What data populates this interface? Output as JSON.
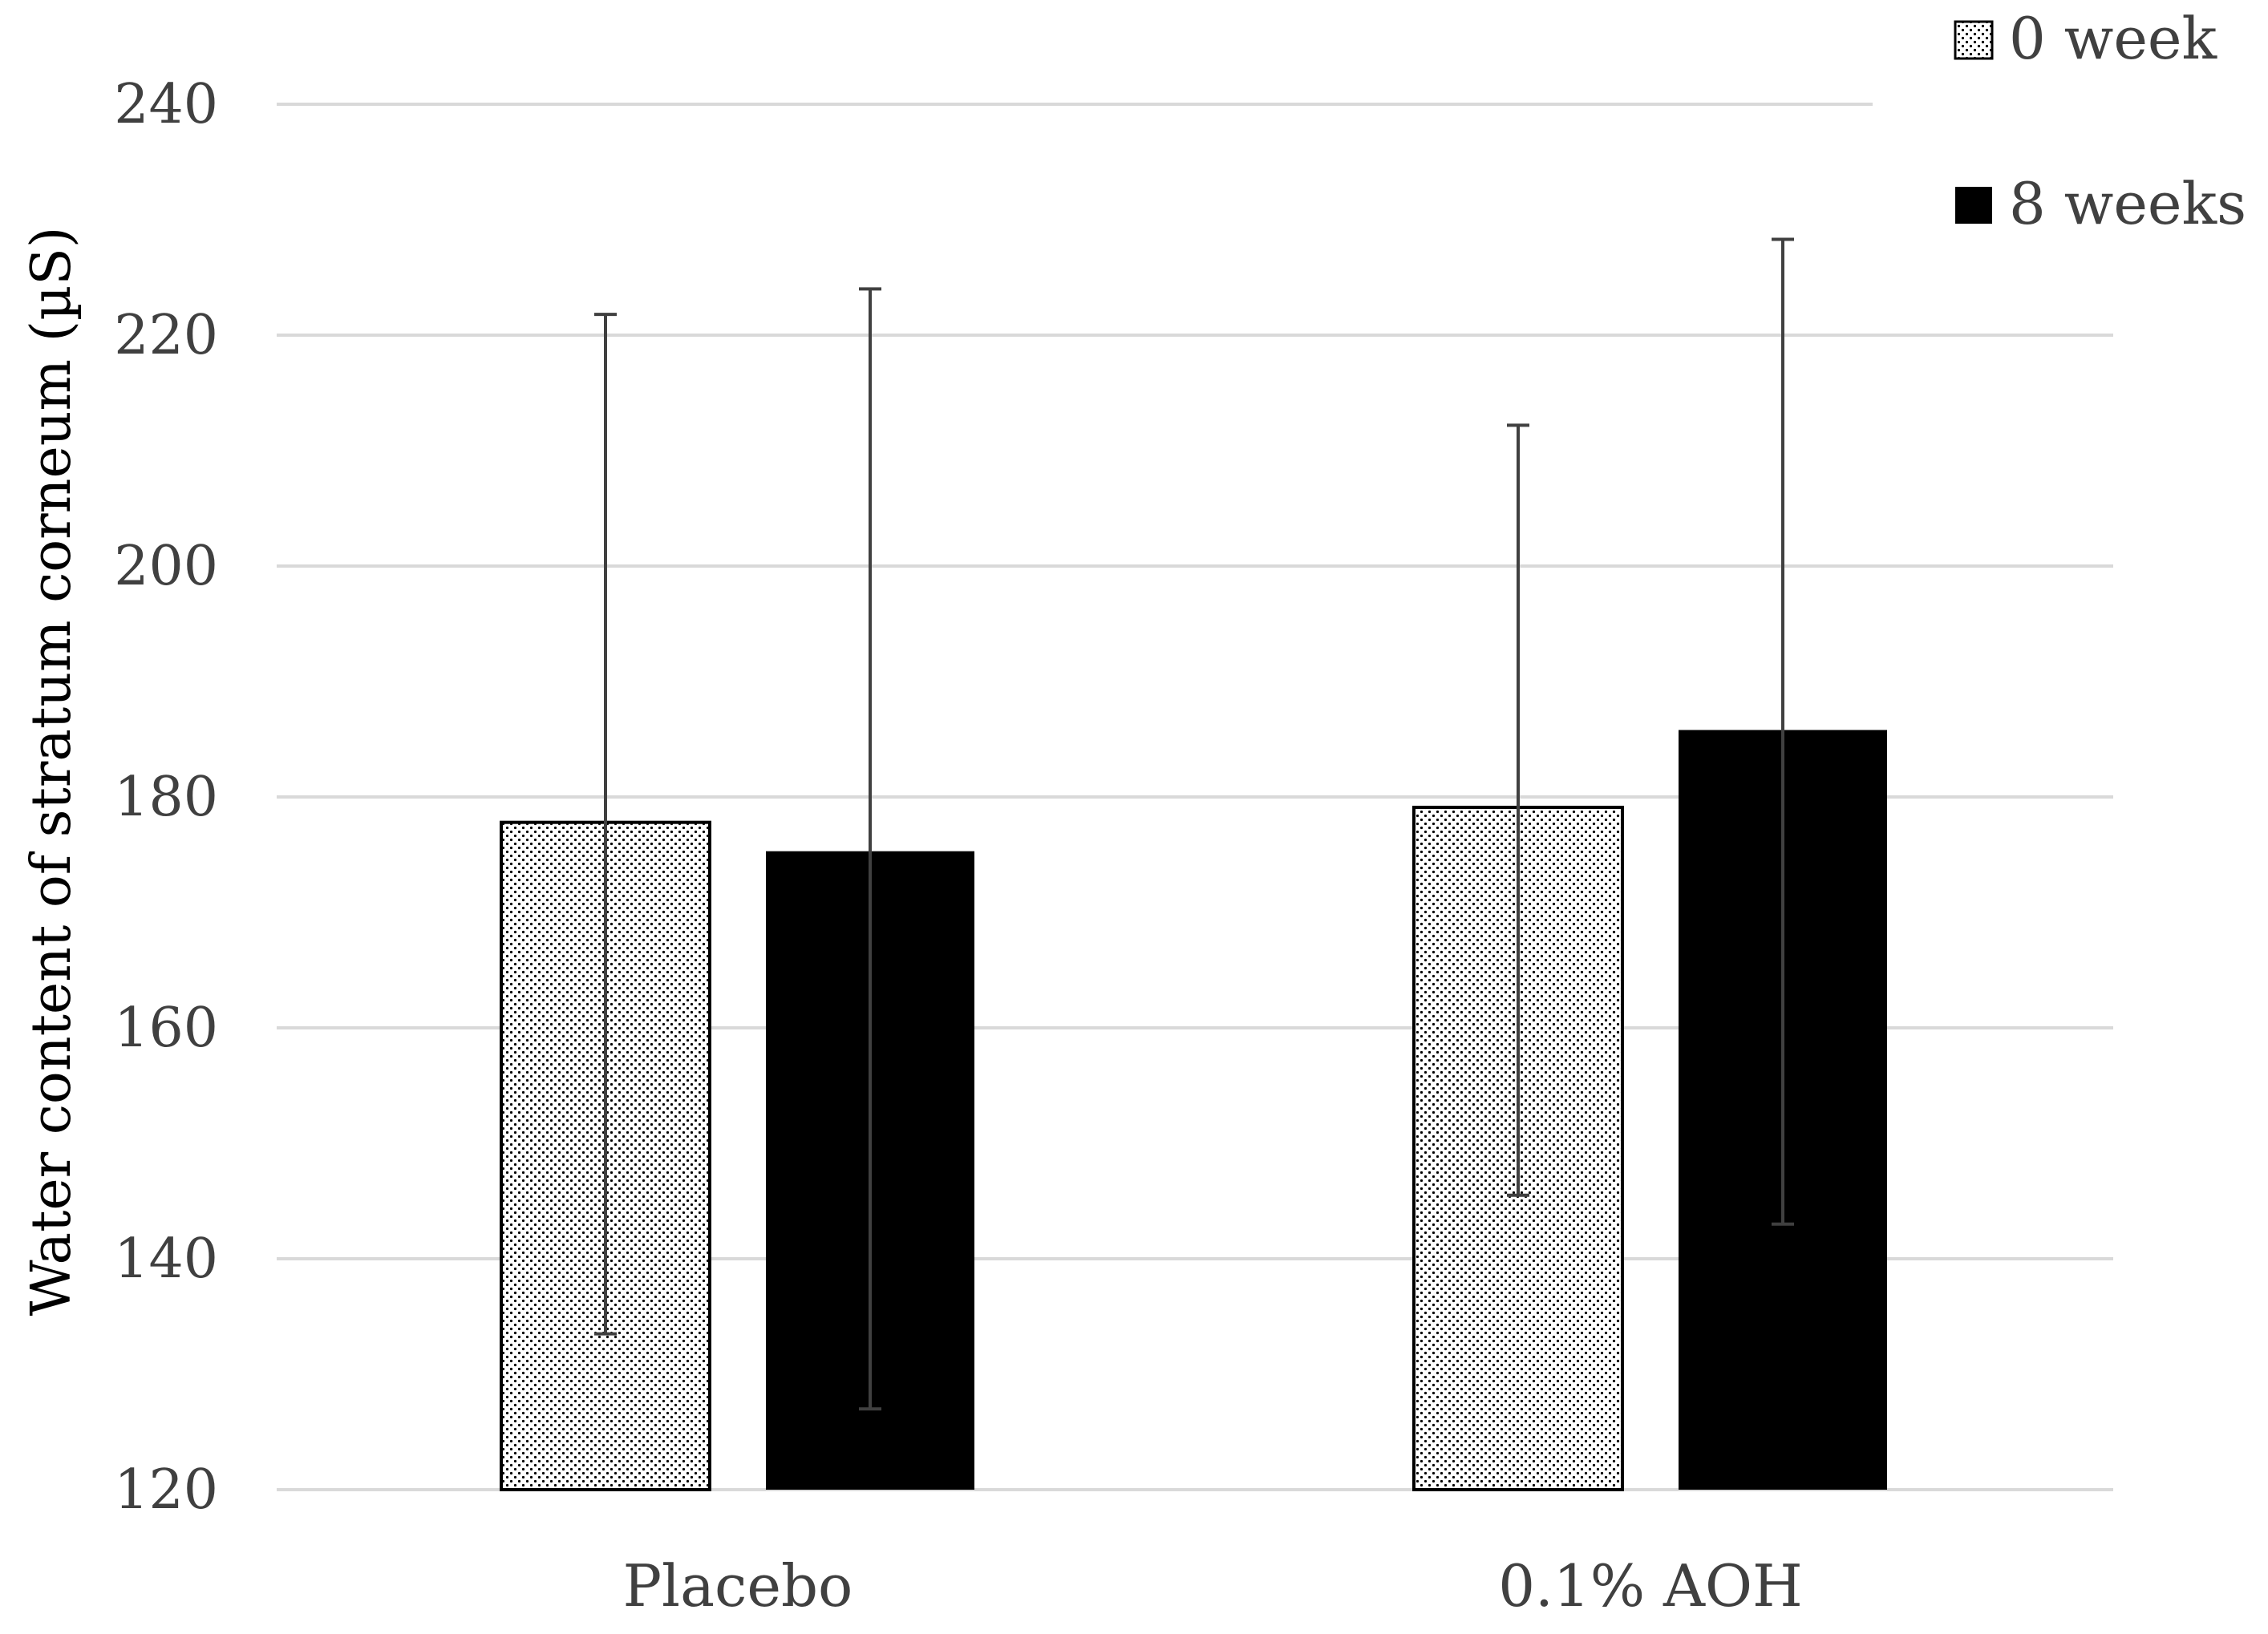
{
  "chart_data": {
    "type": "bar",
    "title": "",
    "xlabel": "",
    "ylabel": "Water content of stratum corneum (µS)",
    "ylim": [
      120,
      240
    ],
    "yticks": [
      120,
      140,
      160,
      180,
      200,
      220,
      240
    ],
    "grid": true,
    "legend_position": "top-right",
    "categories": [
      "Placebo",
      "0.1% AOH"
    ],
    "series": [
      {
        "name": "0 week",
        "pattern": "dotted",
        "values": [
          177.8,
          179.1
        ],
        "error_low": [
          133.5,
          145.5
        ],
        "error_high": [
          221.8,
          212.2
        ]
      },
      {
        "name": "8 weeks",
        "pattern": "solid",
        "values": [
          175.3,
          185.8
        ],
        "error_low": [
          127.0,
          143.0
        ],
        "error_high": [
          224.0,
          228.3
        ]
      }
    ]
  },
  "colors": {
    "bar_solid": "#000000",
    "bar_dotted_bg": "#ffffff",
    "bar_dotted_dot": "#000000",
    "gridline": "#d9d9d9",
    "error_bar": "#404040",
    "text": "#404040"
  }
}
